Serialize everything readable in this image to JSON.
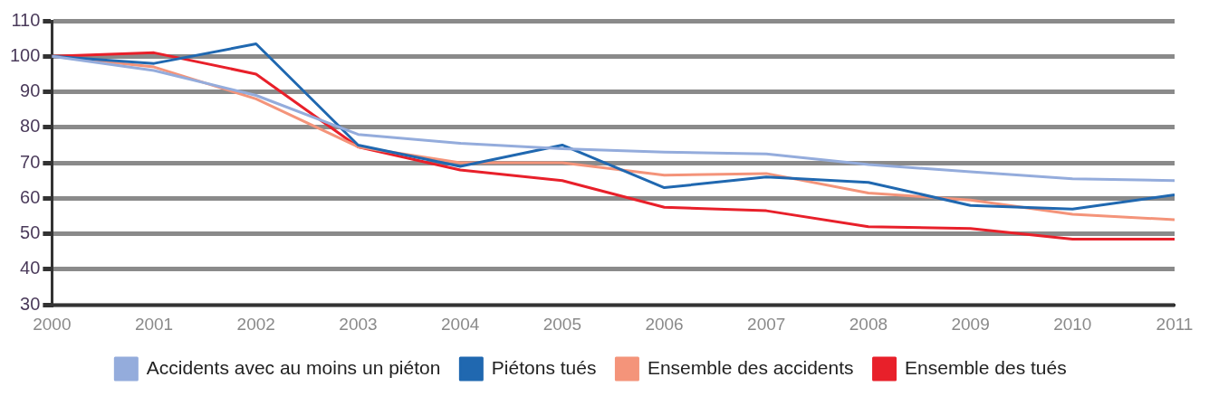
{
  "chart_data": {
    "type": "line",
    "x": [
      2000,
      2001,
      2002,
      2003,
      2004,
      2005,
      2006,
      2007,
      2008,
      2009,
      2010,
      2011
    ],
    "xlim": [
      2000,
      2011
    ],
    "xticks": [
      2000,
      2001,
      2002,
      2003,
      2004,
      2005,
      2006,
      2007,
      2008,
      2009,
      2010,
      2011
    ],
    "ylim": [
      30,
      110
    ],
    "yticks": [
      30,
      40,
      50,
      60,
      70,
      80,
      90,
      100,
      110
    ],
    "grid": "y",
    "legend": "bottom",
    "marker": "none",
    "line_style": "solid",
    "series": [
      {
        "name": "Accidents avec au moins un piéton",
        "color": "#94acdc",
        "values": [
          100,
          96,
          89,
          78,
          75.5,
          74,
          73,
          72.5,
          69.5,
          67.5,
          65.5,
          65
        ]
      },
      {
        "name": "Piétons tués",
        "color": "#2068b0",
        "values": [
          100,
          98,
          103.5,
          75,
          69,
          75,
          63,
          66,
          64.5,
          58,
          57,
          61
        ]
      },
      {
        "name": "Ensemble des accidents",
        "color": "#f4947a",
        "values": [
          100,
          97,
          88,
          74.5,
          70,
          70,
          66.5,
          67,
          61.5,
          59.5,
          55.5,
          54
        ]
      },
      {
        "name": "Ensemble des tués",
        "color": "#e8202a",
        "values": [
          100,
          101,
          95,
          74.5,
          68,
          65,
          57.5,
          56.5,
          52,
          51.5,
          48.5,
          48.5
        ]
      }
    ]
  }
}
